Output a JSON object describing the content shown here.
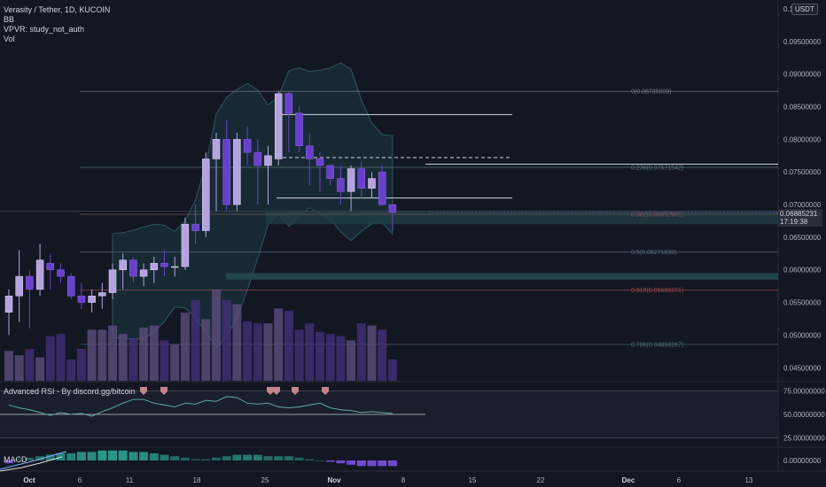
{
  "header": {
    "symbol_title": "Verasity / Tether, 1D, KUCOIN",
    "indicators": [
      "BB",
      "VPVR: study_not_auth",
      "Vol"
    ]
  },
  "currency": "USDT",
  "price_axis": {
    "labels": [
      "0.1",
      "0.09500000",
      "0.09000000",
      "0.08500000",
      "0.08000000",
      "0.07500000",
      "0.07000000",
      "0.06500000",
      "0.06000000",
      "0.05500000",
      "0.05000000",
      "0.04500000"
    ],
    "last_price": "0.06885231",
    "countdown": "17:19:38"
  },
  "fib_levels": [
    {
      "label": "0(0.08735009)",
      "value": 0.08735009,
      "color": "#787b86"
    },
    {
      "label": "0.236(0.07571542)",
      "value": 0.07571542,
      "color": "#5d7a77"
    },
    {
      "label": "0.382(0.06852601)",
      "value": 0.06852601,
      "color": "#7a5a5a"
    },
    {
      "label": "0.5(0.06271839)",
      "value": 0.06271839,
      "color": "#5a6b7a"
    },
    {
      "label": "0.618(0.05688271)",
      "value": 0.05688271,
      "color": "#a04848"
    },
    {
      "label": "0.786(0.04858267)",
      "value": 0.04858267,
      "color": "#4d7070"
    }
  ],
  "rsi_pane": {
    "title": "Advanced RSI - By discord.gg/bitcoin",
    "labels": [
      "75.00000000",
      "50.00000000",
      "25.00000000"
    ]
  },
  "macd_pane": {
    "title": "MACD",
    "labels": [
      "0.00000000"
    ]
  },
  "time_axis": {
    "labels": [
      "Oct",
      "6",
      "11",
      "18",
      "25",
      "Nov",
      "8",
      "15",
      "22",
      "Dec",
      "6",
      "13"
    ]
  },
  "colors": {
    "background": "#131722",
    "up_candle": "#b5a3e0",
    "down_candle": "#6a3fd0",
    "bollinger_fill": "#1c3a44",
    "rsi_line": "#5fa8a0",
    "macd_up": "#2a9d8f",
    "macd_down": "#7b4fe0"
  },
  "chart_data": {
    "type": "candlestick",
    "title": "Verasity / Tether, 1D, KUCOIN",
    "candles": [
      {
        "o": 0.0535,
        "h": 0.057,
        "l": 0.05,
        "c": 0.056
      },
      {
        "o": 0.056,
        "h": 0.063,
        "l": 0.052,
        "c": 0.059
      },
      {
        "o": 0.059,
        "h": 0.06,
        "l": 0.051,
        "c": 0.057
      },
      {
        "o": 0.057,
        "h": 0.064,
        "l": 0.056,
        "c": 0.0615
      },
      {
        "o": 0.061,
        "h": 0.0625,
        "l": 0.057,
        "c": 0.06
      },
      {
        "o": 0.06,
        "h": 0.061,
        "l": 0.058,
        "c": 0.059
      },
      {
        "o": 0.059,
        "h": 0.0595,
        "l": 0.0555,
        "c": 0.056
      },
      {
        "o": 0.056,
        "h": 0.058,
        "l": 0.054,
        "c": 0.055
      },
      {
        "o": 0.055,
        "h": 0.057,
        "l": 0.0535,
        "c": 0.056
      },
      {
        "o": 0.056,
        "h": 0.058,
        "l": 0.054,
        "c": 0.0565
      },
      {
        "o": 0.0565,
        "h": 0.061,
        "l": 0.0555,
        "c": 0.06
      },
      {
        "o": 0.06,
        "h": 0.0625,
        "l": 0.057,
        "c": 0.0615
      },
      {
        "o": 0.0615,
        "h": 0.062,
        "l": 0.058,
        "c": 0.059
      },
      {
        "o": 0.059,
        "h": 0.061,
        "l": 0.0575,
        "c": 0.06
      },
      {
        "o": 0.06,
        "h": 0.062,
        "l": 0.058,
        "c": 0.061
      },
      {
        "o": 0.061,
        "h": 0.063,
        "l": 0.059,
        "c": 0.0605
      },
      {
        "o": 0.0605,
        "h": 0.062,
        "l": 0.059,
        "c": 0.0605
      },
      {
        "o": 0.0605,
        "h": 0.068,
        "l": 0.06,
        "c": 0.067
      },
      {
        "o": 0.067,
        "h": 0.07,
        "l": 0.064,
        "c": 0.066
      },
      {
        "o": 0.066,
        "h": 0.078,
        "l": 0.065,
        "c": 0.077
      },
      {
        "o": 0.077,
        "h": 0.081,
        "l": 0.069,
        "c": 0.08
      },
      {
        "o": 0.08,
        "h": 0.083,
        "l": 0.069,
        "c": 0.07
      },
      {
        "o": 0.07,
        "h": 0.081,
        "l": 0.069,
        "c": 0.08
      },
      {
        "o": 0.08,
        "h": 0.082,
        "l": 0.076,
        "c": 0.078
      },
      {
        "o": 0.078,
        "h": 0.08,
        "l": 0.07,
        "c": 0.076
      },
      {
        "o": 0.076,
        "h": 0.079,
        "l": 0.07,
        "c": 0.0775
      },
      {
        "o": 0.077,
        "h": 0.0874,
        "l": 0.076,
        "c": 0.087
      },
      {
        "o": 0.087,
        "h": 0.0874,
        "l": 0.078,
        "c": 0.084
      },
      {
        "o": 0.084,
        "h": 0.085,
        "l": 0.078,
        "c": 0.079
      },
      {
        "o": 0.079,
        "h": 0.081,
        "l": 0.073,
        "c": 0.077
      },
      {
        "o": 0.077,
        "h": 0.078,
        "l": 0.072,
        "c": 0.076
      },
      {
        "o": 0.076,
        "h": 0.076,
        "l": 0.073,
        "c": 0.074
      },
      {
        "o": 0.074,
        "h": 0.076,
        "l": 0.07,
        "c": 0.072
      },
      {
        "o": 0.072,
        "h": 0.076,
        "l": 0.069,
        "c": 0.0755
      },
      {
        "o": 0.0755,
        "h": 0.0765,
        "l": 0.071,
        "c": 0.0725
      },
      {
        "o": 0.0725,
        "h": 0.075,
        "l": 0.071,
        "c": 0.074
      },
      {
        "o": 0.075,
        "h": 0.076,
        "l": 0.07,
        "c": 0.07
      },
      {
        "o": 0.07,
        "h": 0.07,
        "l": 0.066,
        "c": 0.0688
      }
    ],
    "volume": [
      14,
      12,
      15,
      11,
      21,
      22,
      10,
      15,
      24,
      24,
      26,
      22,
      20,
      25,
      26,
      19,
      17,
      32,
      38,
      29,
      43,
      38,
      36,
      28,
      27,
      27,
      34,
      33,
      24,
      27,
      23,
      22,
      21,
      19,
      27,
      26,
      24,
      10
    ],
    "rsi": [
      60,
      57,
      55,
      52,
      49,
      52,
      50,
      51,
      48,
      53,
      57,
      62,
      66,
      66,
      62,
      60,
      58,
      62,
      61,
      65,
      64,
      69,
      68,
      62,
      61,
      62,
      58,
      57,
      58,
      60,
      62,
      57,
      55,
      54,
      52,
      53,
      52,
      51
    ],
    "macd_hist": [
      -2,
      1,
      2,
      3,
      4,
      5,
      5,
      6,
      6,
      7,
      7,
      7,
      6,
      6,
      5,
      4,
      3,
      2,
      1,
      1,
      2,
      3,
      4,
      4,
      4,
      3,
      3,
      3,
      2,
      1,
      0,
      -1,
      -2,
      -3,
      -4,
      -4,
      -4,
      -4
    ],
    "horizontal_lines": [
      0.0838,
      0.0772,
      0.071
    ],
    "y_range": [
      0.043,
      0.1
    ]
  }
}
